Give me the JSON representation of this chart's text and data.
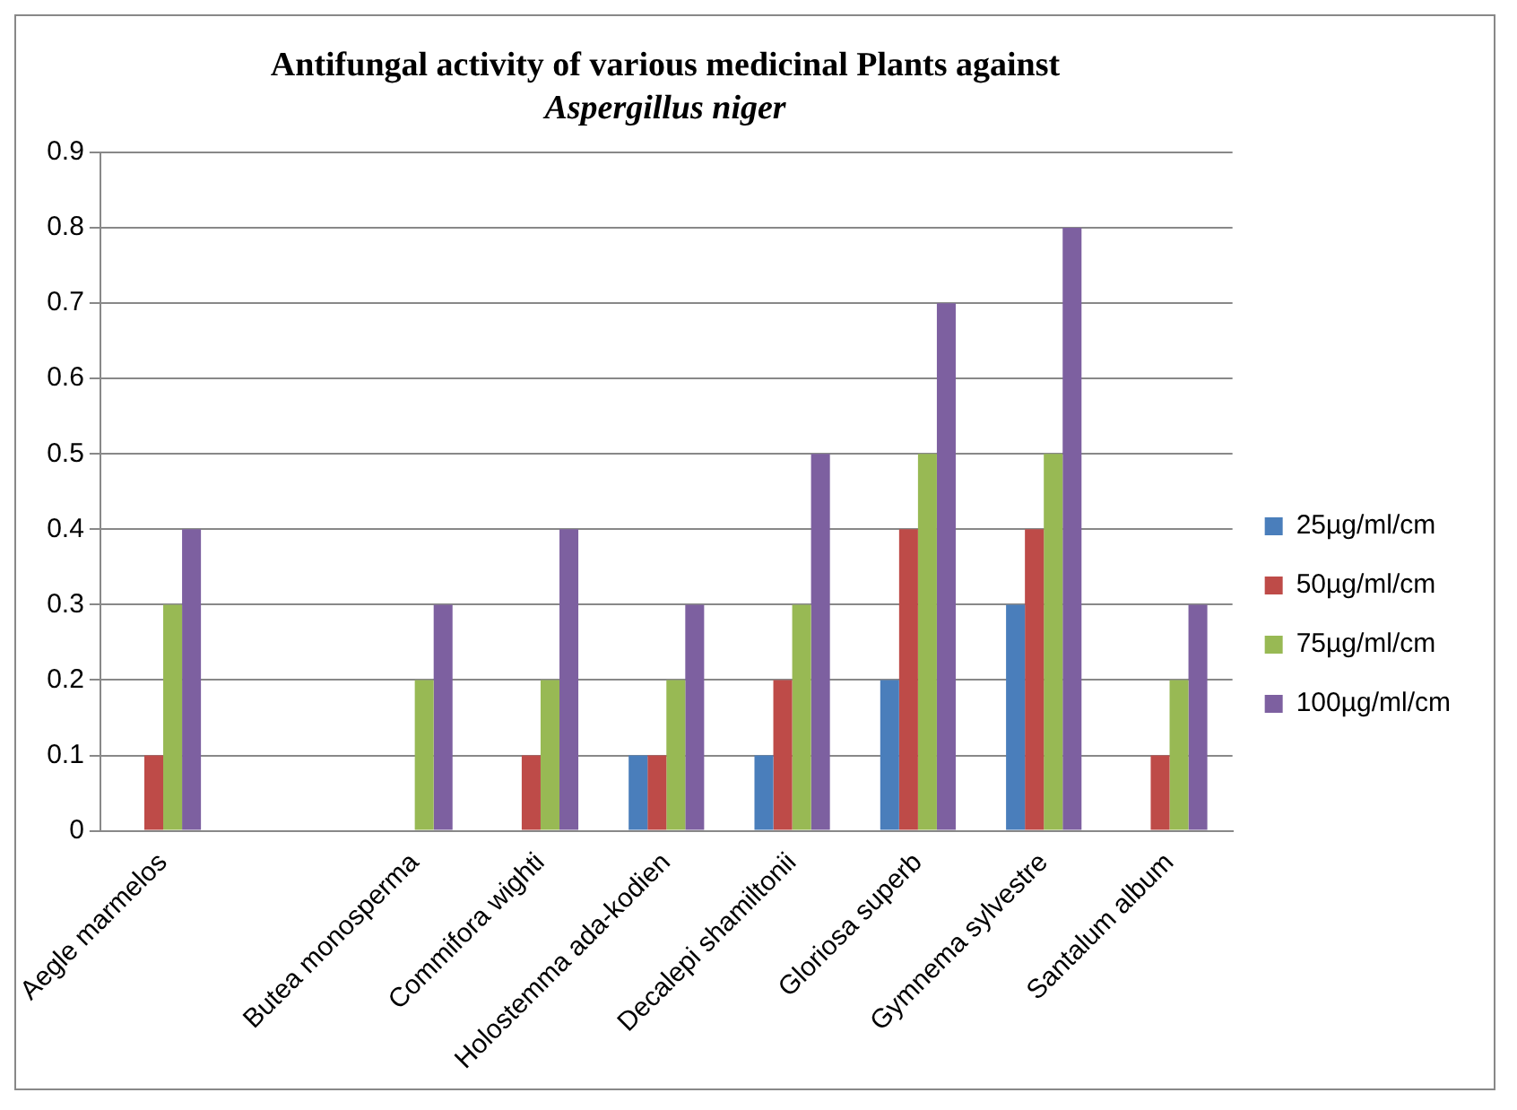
{
  "chart_data": {
    "type": "bar",
    "title": "Antifungal activity of various medicinal Plants against\nAspergillus niger",
    "categories": [
      "Aegle marmelos",
      null,
      "Butea monosperma",
      "Commifora wighti",
      "Holostemma ada-kodien",
      "Decalepi shamiltonii",
      "Gloriosa superb",
      "Gymnema sylvestre",
      "Santalum album"
    ],
    "series": [
      {
        "name": "25µg/ml/cm",
        "color": "#4a7ebb",
        "values": [
          0,
          0,
          0,
          0,
          0.1,
          0.1,
          0.2,
          0.3,
          0
        ]
      },
      {
        "name": "50µg/ml/cm",
        "color": "#be4b48",
        "values": [
          0.1,
          0,
          0,
          0.1,
          0.1,
          0.2,
          0.4,
          0.4,
          0.1
        ]
      },
      {
        "name": "75µg/ml/cm",
        "color": "#98b954",
        "values": [
          0.3,
          0,
          0.2,
          0.2,
          0.2,
          0.3,
          0.5,
          0.5,
          0.2
        ]
      },
      {
        "name": "100µg/ml/cm",
        "color": "#7d60a0",
        "values": [
          0.4,
          0,
          0.3,
          0.4,
          0.3,
          0.5,
          0.7,
          0.8,
          0.3
        ]
      }
    ],
    "ylim": [
      0,
      0.9
    ],
    "yticks": [
      0,
      0.1,
      0.2,
      0.3,
      0.4,
      0.5,
      0.6,
      0.7,
      0.8,
      0.9
    ],
    "grid": "y",
    "legend": "right"
  }
}
